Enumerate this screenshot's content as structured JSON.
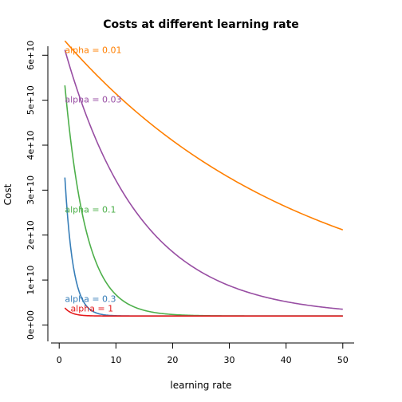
{
  "chart_data": {
    "type": "line",
    "title": "Costs at different learning rate",
    "xlabel": "learning rate",
    "ylabel": "Cost",
    "xlim": [
      -2,
      52
    ],
    "ylim": [
      -4000000000.0,
      62000000000.0
    ],
    "x_ticks": [
      0,
      10,
      20,
      30,
      40,
      50
    ],
    "y_ticks": [
      0,
      10000000000.0,
      20000000000.0,
      30000000000.0,
      40000000000.0,
      50000000000.0,
      60000000000.0
    ],
    "x_tick_labels": [
      "0",
      "10",
      "20",
      "30",
      "40",
      "50"
    ],
    "y_tick_labels": [
      "0e+00",
      "1e+10",
      "2e+10",
      "3e+10",
      "4e+10",
      "5e+10",
      "6e+10"
    ],
    "grid": false,
    "series": [
      {
        "name": "alpha = 0.01",
        "color": "#FF7F00",
        "label_at": [
          1,
          61000000000.0
        ],
        "floor": 2000000000.0,
        "start": 63200000000.0,
        "decay": 0.0237,
        "x_range": [
          1,
          50
        ]
      },
      {
        "name": "alpha = 0.03",
        "color": "#984EA3",
        "label_at": [
          1,
          50000000000.0
        ],
        "floor": 2000000000.0,
        "start": 61200000000.0,
        "decay": 0.0749,
        "x_range": [
          1,
          50
        ]
      },
      {
        "name": "alpha = 0.1",
        "color": "#4DAF4A",
        "label_at": [
          1,
          25500000000.0
        ],
        "floor": 2000000000.0,
        "start": 53300000000.0,
        "decay": 0.265,
        "x_range": [
          1,
          50
        ]
      },
      {
        "name": "alpha = 0.3",
        "color": "#377EB8",
        "label_at": [
          1,
          5700000000.0
        ],
        "floor": 2000000000.0,
        "start": 32800000000.0,
        "decay": 0.69,
        "x_range": [
          1,
          50
        ]
      },
      {
        "name": "alpha = 1",
        "color": "#E41A1C",
        "label_at": [
          2,
          3500000000.0
        ],
        "floor": 2000000000.0,
        "start": 3800000000.0,
        "decay": 0.8,
        "x_range": [
          1,
          50
        ]
      }
    ]
  }
}
